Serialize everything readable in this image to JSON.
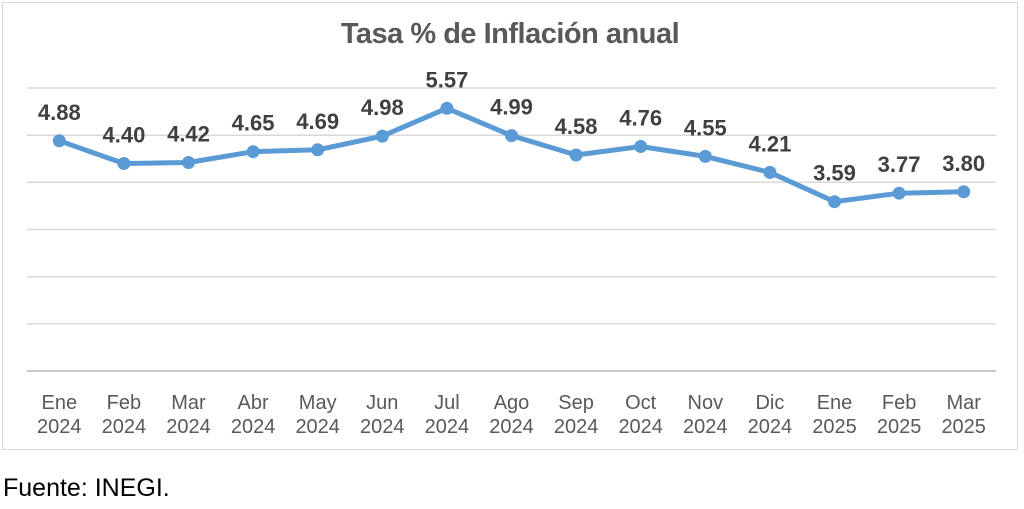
{
  "chart": {
    "colors": {
      "line": "#5B9BD5",
      "marker": "#5B9BD5",
      "gridline": "#D9D9D9",
      "axis_line": "#C8C8C8",
      "frame_border": "#D9D9D9",
      "background": "#FFFFFF",
      "title_text": "#595959",
      "axis_text": "#595959",
      "data_label_text": "#404040",
      "source_text": "#000000"
    }
  },
  "chart_data": {
    "type": "line",
    "title": "Tasa % de Inflación anual",
    "series_name": "Tasa % de Inflación anual",
    "categories": [
      "Ene 2024",
      "Feb 2024",
      "Mar 2024",
      "Abr 2024",
      "May 2024",
      "Jun 2024",
      "Jul 2024",
      "Ago 2024",
      "Sep 2024",
      "Oct 2024",
      "Nov 2024",
      "Dic 2024",
      "Ene 2025",
      "Feb 2025",
      "Mar 2025"
    ],
    "values": [
      4.88,
      4.4,
      4.42,
      4.65,
      4.69,
      4.98,
      5.57,
      4.99,
      4.58,
      4.76,
      4.55,
      4.21,
      3.59,
      3.77,
      3.8
    ],
    "value_label_format": "0.00",
    "data_labels_position": "above",
    "xlabel": "",
    "ylabel": "",
    "ylim": [
      0,
      6
    ],
    "y_gridline_step": 1,
    "y_axis_labels_visible": false,
    "grid": "horizontal",
    "legend": "none",
    "source": "Fuente: INEGI."
  }
}
